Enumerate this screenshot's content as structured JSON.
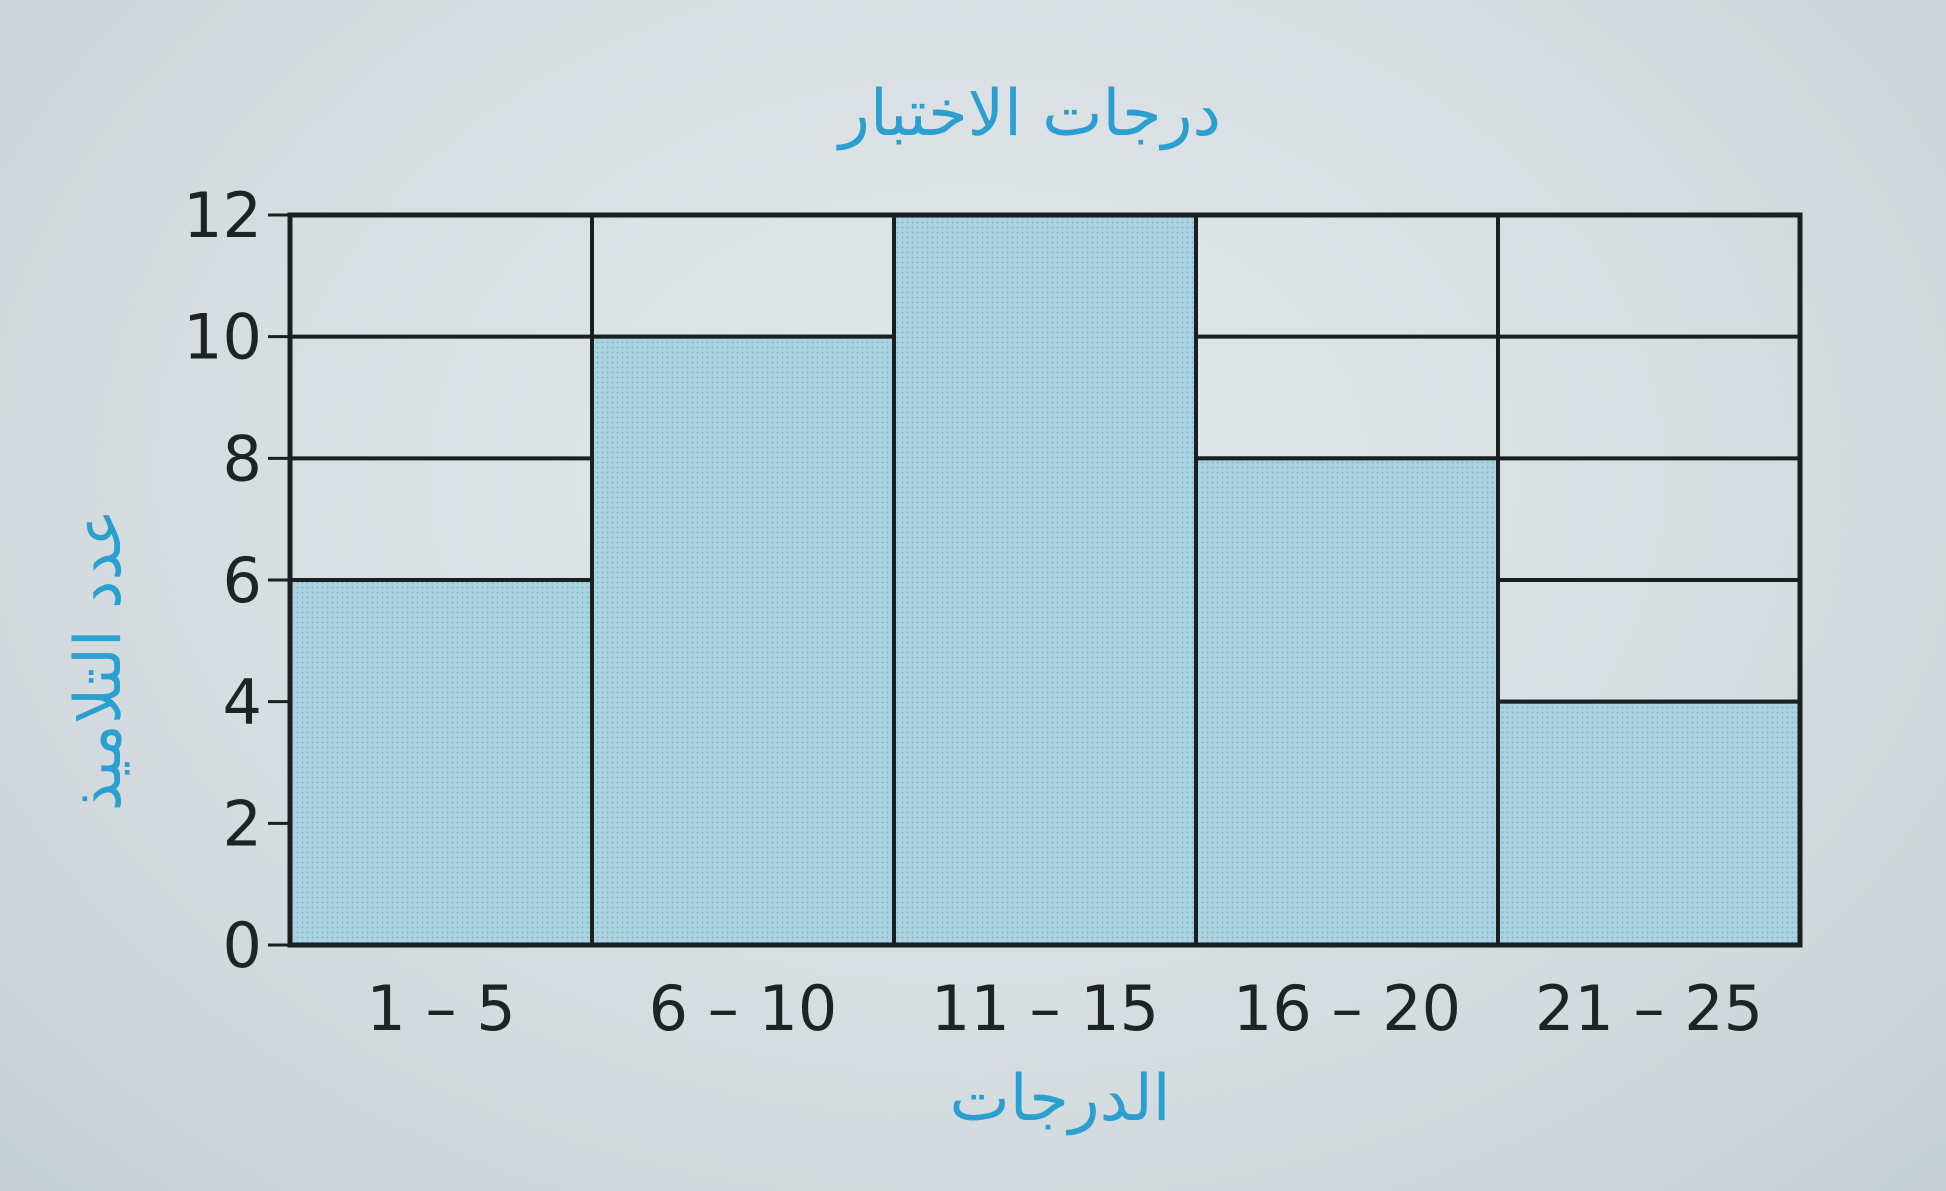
{
  "chart_data": {
    "type": "bar",
    "title": "درجات الاختبار",
    "xlabel": "الدرجات",
    "ylabel": "عدد التلاميذ",
    "categories": [
      "1 – 5",
      "6 – 10",
      "11 – 15",
      "16 – 20",
      "21 – 25"
    ],
    "values": [
      6,
      10,
      12,
      8,
      4
    ],
    "ylim": [
      0,
      12
    ],
    "yticks": [
      0,
      2,
      4,
      6,
      8,
      10,
      12
    ],
    "grid": true,
    "colors": {
      "bar": "#a9d3e1",
      "text_accent": "#2a9fd0",
      "line": "#1a1f22"
    }
  }
}
